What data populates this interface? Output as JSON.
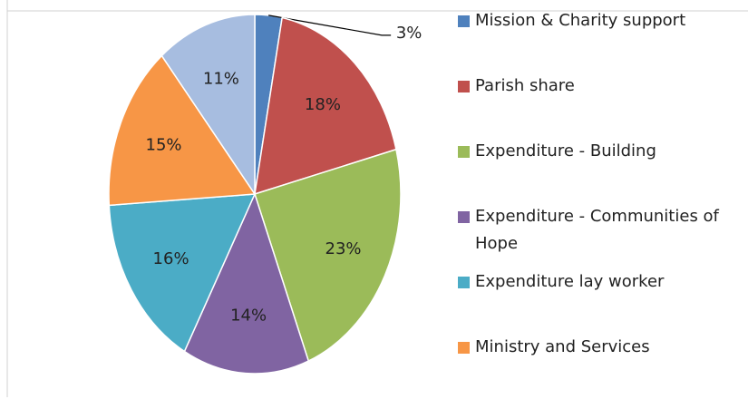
{
  "chart_data": {
    "type": "pie",
    "categories": [
      "Mission & Charity support",
      "Parish share",
      "Expenditure - Building",
      "Expenditure - Communities of Hope",
      "Expenditure lay worker",
      "Ministry and Services",
      null
    ],
    "values": [
      3,
      18,
      23,
      14,
      16,
      15,
      11
    ],
    "value_labels": [
      "3%",
      "18%",
      "23%",
      "14%",
      "16%",
      "15%",
      "11%"
    ],
    "colors": [
      "#4f81bd",
      "#c0504d",
      "#9bbb59",
      "#8064a2",
      "#4bacc6",
      "#f79646",
      "#a7bde0"
    ],
    "legend": "right"
  }
}
